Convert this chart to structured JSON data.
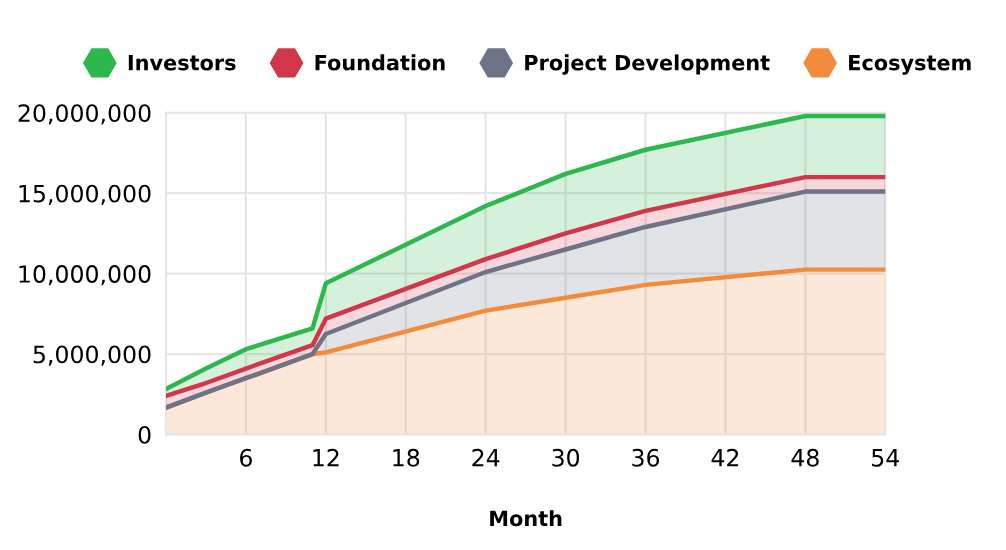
{
  "chart_data": {
    "type": "area",
    "stacked": true,
    "xlabel": "Month",
    "x": [
      0,
      3,
      6,
      11,
      12,
      24,
      30,
      36,
      48,
      54
    ],
    "series": [
      {
        "name": "Ecosystem",
        "color": "#f28c3c",
        "values": [
          1670000,
          2600000,
          3500000,
          5000000,
          5100000,
          7700000,
          8500000,
          9300000,
          10250000,
          10250000
        ]
      },
      {
        "name": "Project Development",
        "color": "#6e7387",
        "values": [
          0,
          0,
          0,
          0,
          1150000,
          2400000,
          3000000,
          3600000,
          4850000,
          4850000
        ]
      },
      {
        "name": "Foundation",
        "color": "#d0384a",
        "values": [
          730000,
          600000,
          600000,
          550000,
          950000,
          800000,
          1000000,
          1000000,
          900000,
          900000
        ]
      },
      {
        "name": "Investors",
        "color": "#2db84d",
        "values": [
          430000,
          900000,
          1200000,
          1050000,
          2200000,
          3300000,
          3700000,
          3800000,
          3800000,
          3800000
        ]
      }
    ],
    "xlim": [
      0,
      54
    ],
    "xticks": [
      6,
      12,
      18,
      24,
      30,
      36,
      42,
      48,
      54
    ],
    "ylim": [
      0,
      20000000
    ],
    "yticks": [
      {
        "value": 0,
        "label": "0"
      },
      {
        "value": 5000000,
        "label": "5,000,000"
      },
      {
        "value": 10000000,
        "label": "10,000,000"
      },
      {
        "value": 15000000,
        "label": "15,000,000"
      },
      {
        "value": 20000000,
        "label": "20,000,000"
      }
    ],
    "grid": true,
    "legend": "top"
  }
}
